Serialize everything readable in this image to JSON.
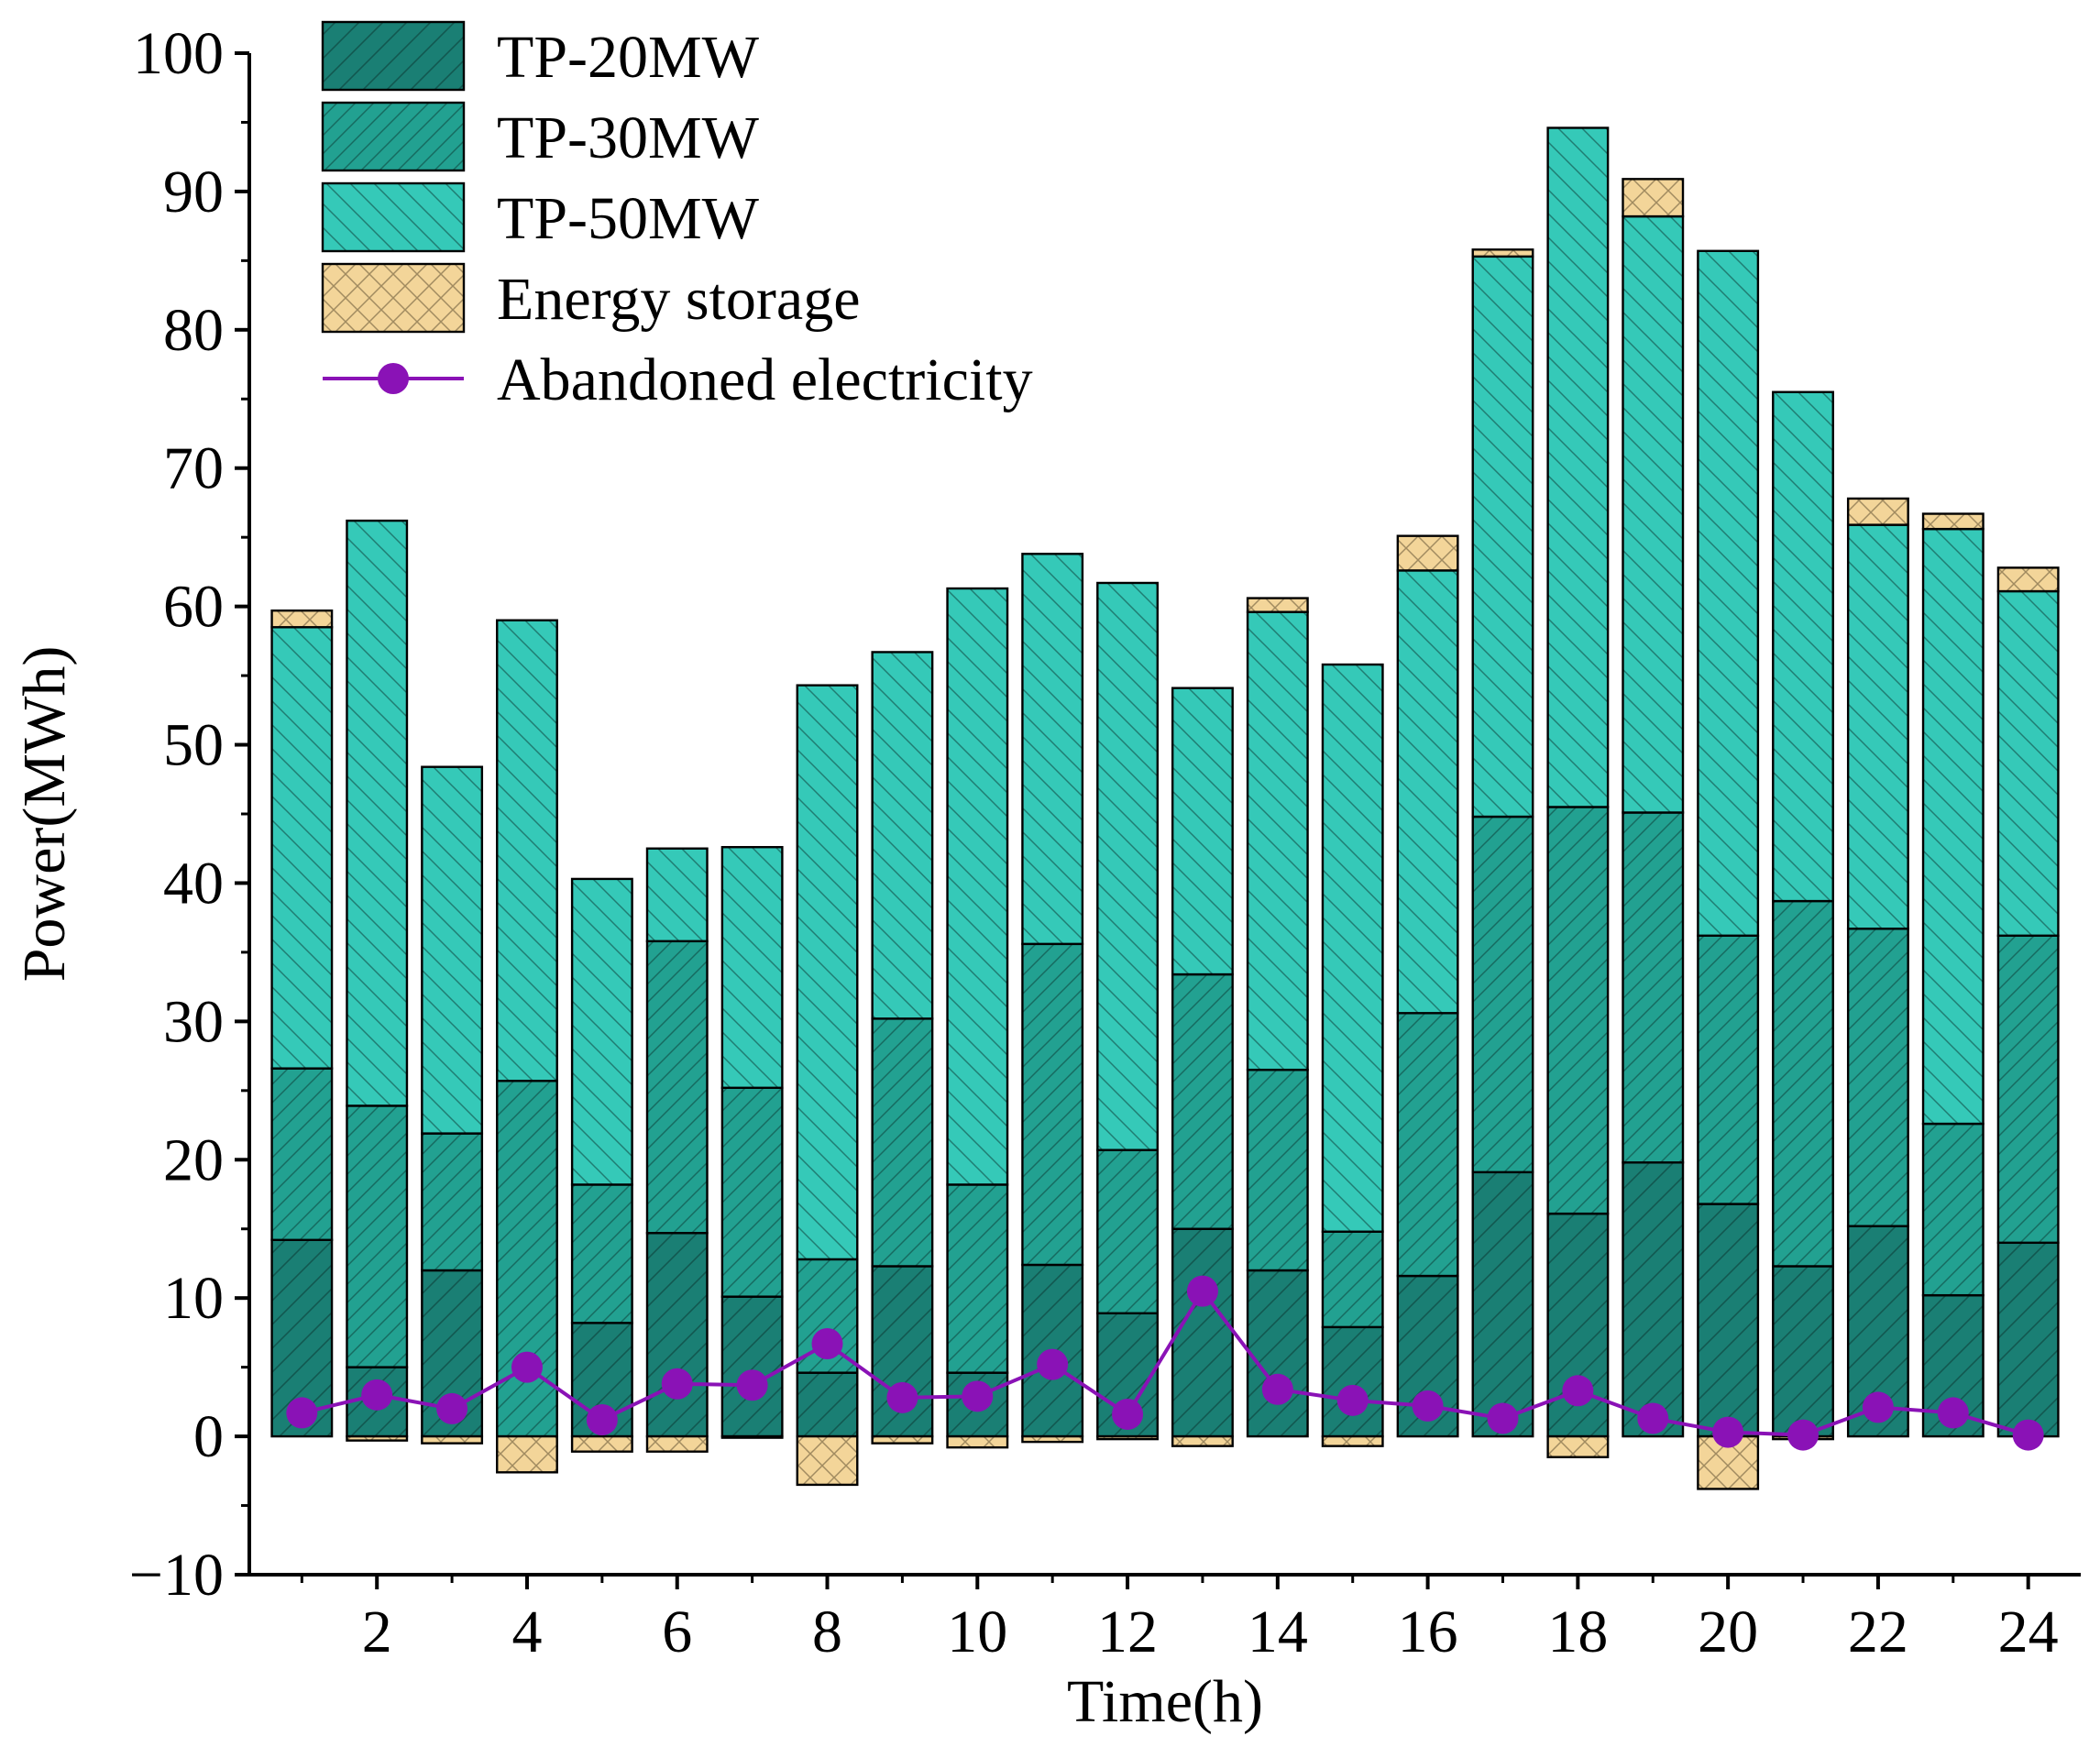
{
  "chart_data": {
    "type": "bar",
    "stacked": true,
    "title": "",
    "xlabel": "Time(h)",
    "ylabel": "Power(MWh)",
    "xlim": [
      0.3,
      24.7
    ],
    "ylim": [
      -10,
      100
    ],
    "y_ticks": [
      -10,
      0,
      10,
      20,
      30,
      40,
      50,
      60,
      70,
      80,
      90,
      100
    ],
    "x_ticks": [
      2,
      4,
      6,
      8,
      10,
      12,
      14,
      16,
      18,
      20,
      22,
      24
    ],
    "x": [
      1,
      2,
      3,
      4,
      5,
      6,
      7,
      8,
      9,
      10,
      11,
      12,
      13,
      14,
      15,
      16,
      17,
      18,
      19,
      20,
      21,
      22,
      23,
      24
    ],
    "legend_position": "top-left",
    "series": [
      {
        "name": "TP-20MW",
        "kind": "bar",
        "color": "#1a7f74",
        "values": [
          14.2,
          5.0,
          12.0,
          0,
          8.2,
          14.7,
          10.1,
          4.6,
          12.3,
          4.6,
          12.4,
          8.9,
          15.0,
          12.0,
          7.9,
          11.6,
          19.1,
          16.1,
          19.8,
          16.8,
          12.3,
          15.2,
          10.2,
          14.0
        ]
      },
      {
        "name": "TP-30MW",
        "kind": "bar",
        "color": "#22a191",
        "values": [
          12.4,
          18.9,
          9.9,
          25.7,
          10.0,
          21.1,
          15.1,
          8.2,
          17.9,
          13.6,
          23.2,
          11.8,
          18.4,
          14.5,
          6.9,
          19.0,
          25.7,
          29.4,
          25.3,
          19.4,
          26.4,
          21.5,
          12.4,
          22.2
        ]
      },
      {
        "name": "TP-50MW",
        "kind": "bar",
        "color": "#35c9b8",
        "values": [
          31.9,
          42.3,
          26.5,
          33.3,
          22.1,
          6.7,
          17.4,
          41.5,
          26.5,
          43.1,
          28.2,
          41.0,
          20.7,
          33.1,
          41.0,
          32.0,
          40.5,
          49.1,
          43.1,
          49.5,
          36.8,
          29.2,
          43.0,
          24.9
        ]
      },
      {
        "name": "Energy storage",
        "kind": "bar",
        "color": "#f3d599",
        "values": [
          1.2,
          -0.3,
          -0.5,
          -2.6,
          -1.1,
          -1.1,
          -0.1,
          -3.5,
          -0.5,
          -0.8,
          -0.4,
          -0.2,
          -0.7,
          1.0,
          -0.7,
          2.5,
          0.5,
          -1.5,
          2.7,
          -3.8,
          -0.2,
          1.9,
          1.1,
          1.7
        ]
      },
      {
        "name": "Abandoned electricity",
        "kind": "line",
        "color": "#8a12b6",
        "values": [
          1.7,
          3.0,
          2.0,
          5.0,
          1.2,
          3.8,
          3.7,
          6.7,
          2.8,
          2.9,
          5.2,
          1.6,
          10.5,
          3.4,
          2.6,
          2.2,
          1.3,
          3.3,
          1.3,
          0.3,
          0.1,
          2.1,
          1.7,
          0.1
        ]
      }
    ]
  }
}
